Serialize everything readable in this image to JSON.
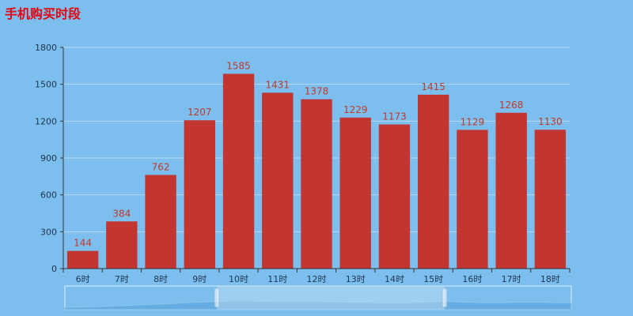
{
  "title": "手机购买时段",
  "colors": {
    "background": "#7cbfee",
    "bar": "#c23531",
    "label": "#c0392b",
    "title": "#e8000b"
  },
  "chart_data": {
    "type": "bar",
    "title": "手机购买时段",
    "categories": [
      "6时",
      "7时",
      "8时",
      "9时",
      "10时",
      "11时",
      "12时",
      "13时",
      "14时",
      "15时",
      "16时",
      "17时",
      "18时"
    ],
    "values": [
      144,
      384,
      762,
      1207,
      1585,
      1431,
      1378,
      1229,
      1173,
      1415,
      1129,
      1268,
      1130
    ],
    "ylim": [
      0,
      1800
    ],
    "yticks": [
      "0",
      "300",
      "600",
      "900",
      "1200",
      "1500",
      "1800"
    ],
    "grid": true,
    "data_labels": true,
    "data_zoom": {
      "start": 0.3,
      "end": 0.75
    }
  }
}
